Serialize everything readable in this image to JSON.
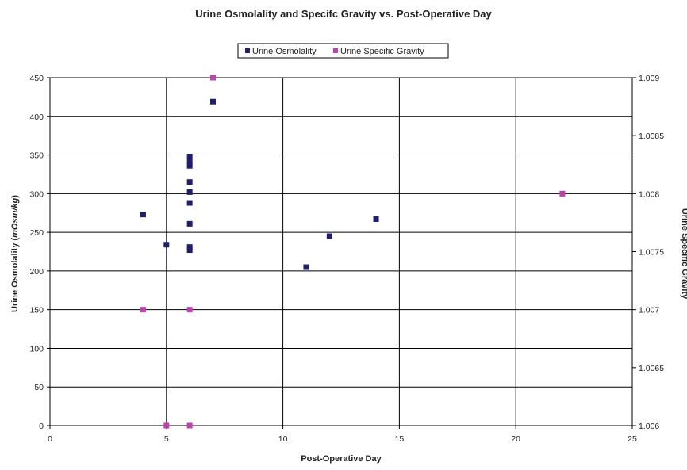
{
  "chart_data": {
    "type": "scatter",
    "title": "Urine Osmolality and Specifc Gravity vs. Post-Operative Day",
    "xlabel": "Post-Operative Day",
    "ylabel_left_main": "Urine Osmolality (",
    "ylabel_left_unit": "mOsm/kg",
    "ylabel_left_close": ")",
    "ylabel_right": "Urine Specific Gravity",
    "xlim": [
      0,
      25
    ],
    "ylim_left": [
      0,
      450
    ],
    "ylim_right": [
      1.006,
      1.009
    ],
    "x_ticks": [
      "0",
      "5",
      "10",
      "15",
      "20",
      "25"
    ],
    "y_left_ticks": [
      "0",
      "50",
      "100",
      "150",
      "200",
      "250",
      "300",
      "350",
      "400",
      "450"
    ],
    "y_right_ticks": [
      "1.006",
      "1.0065",
      "1.007",
      "1.0075",
      "1.008",
      "1.0085",
      "1.009"
    ],
    "grid": true,
    "legend_position": "top",
    "series": [
      {
        "name": "Urine Osmolality",
        "axis": "left",
        "color": "#1f1f6e",
        "points": [
          [
            4,
            273
          ],
          [
            5,
            234
          ],
          [
            6,
            348
          ],
          [
            6,
            342
          ],
          [
            6,
            336
          ],
          [
            6,
            315
          ],
          [
            6,
            302
          ],
          [
            6,
            288
          ],
          [
            6,
            261
          ],
          [
            6,
            231
          ],
          [
            6,
            227
          ],
          [
            7,
            419
          ],
          [
            11,
            205
          ],
          [
            12,
            245
          ],
          [
            14,
            267
          ]
        ]
      },
      {
        "name": "Urine Specific Gravity",
        "axis": "right",
        "color": "#c040b0",
        "points": [
          [
            4,
            1.007
          ],
          [
            5,
            1.006
          ],
          [
            6,
            1.007
          ],
          [
            6,
            1.006
          ],
          [
            7,
            1.009
          ],
          [
            22,
            1.008
          ]
        ]
      }
    ]
  }
}
